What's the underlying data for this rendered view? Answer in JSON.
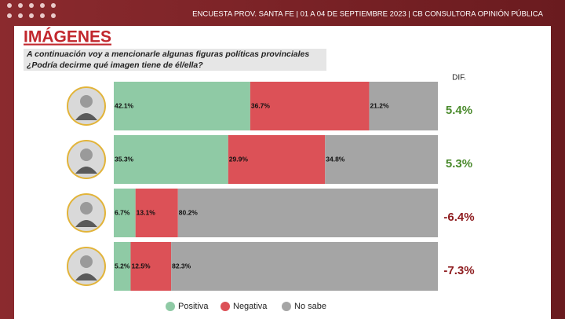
{
  "chart_data": {
    "type": "bar",
    "orientation": "horizontal",
    "stacked": true,
    "header": "ENCUESTA PROV. SANTA FE | 01 A 04 DE SEPTIEMBRE 2023 | CB CONSULTORA OPINIÓN PÚBLICA",
    "title": "IMÁGENES",
    "subtitle": [
      "A continuación voy a mencionarle algunas figuras políticas provinciales",
      "¿Podría decirme qué imagen tiene de él/ella?"
    ],
    "categories": [
      null,
      null,
      null,
      null
    ],
    "xlim": [
      0,
      100
    ],
    "series": [
      {
        "name": "Positiva",
        "color": "#8fcaa5",
        "values": [
          42.1,
          35.3,
          6.7,
          5.2
        ],
        "value_labels": [
          "42.1%",
          "35.3%",
          "6.7%",
          "5.2%"
        ]
      },
      {
        "name": "Negativa",
        "color": "#dc5157",
        "values": [
          36.7,
          29.9,
          13.1,
          12.5
        ],
        "value_labels": [
          "36.7%",
          "29.9%",
          "13.1%",
          "12.5%"
        ]
      },
      {
        "name": "No sabe",
        "color": "#a5a5a5",
        "values": [
          21.2,
          34.8,
          80.2,
          82.3
        ],
        "value_labels": [
          "21.2%",
          "34.8%",
          "80.2%",
          "82.3%"
        ]
      }
    ],
    "difference": {
      "label": "DIF.",
      "values": [
        5.4,
        5.3,
        -6.4,
        -7.3
      ],
      "value_labels": [
        "5.4%",
        "5.3%",
        "-6.4%",
        "-7.3%"
      ],
      "positive_color": "#4a8a2c",
      "negative_color": "#8e1c1f"
    }
  }
}
